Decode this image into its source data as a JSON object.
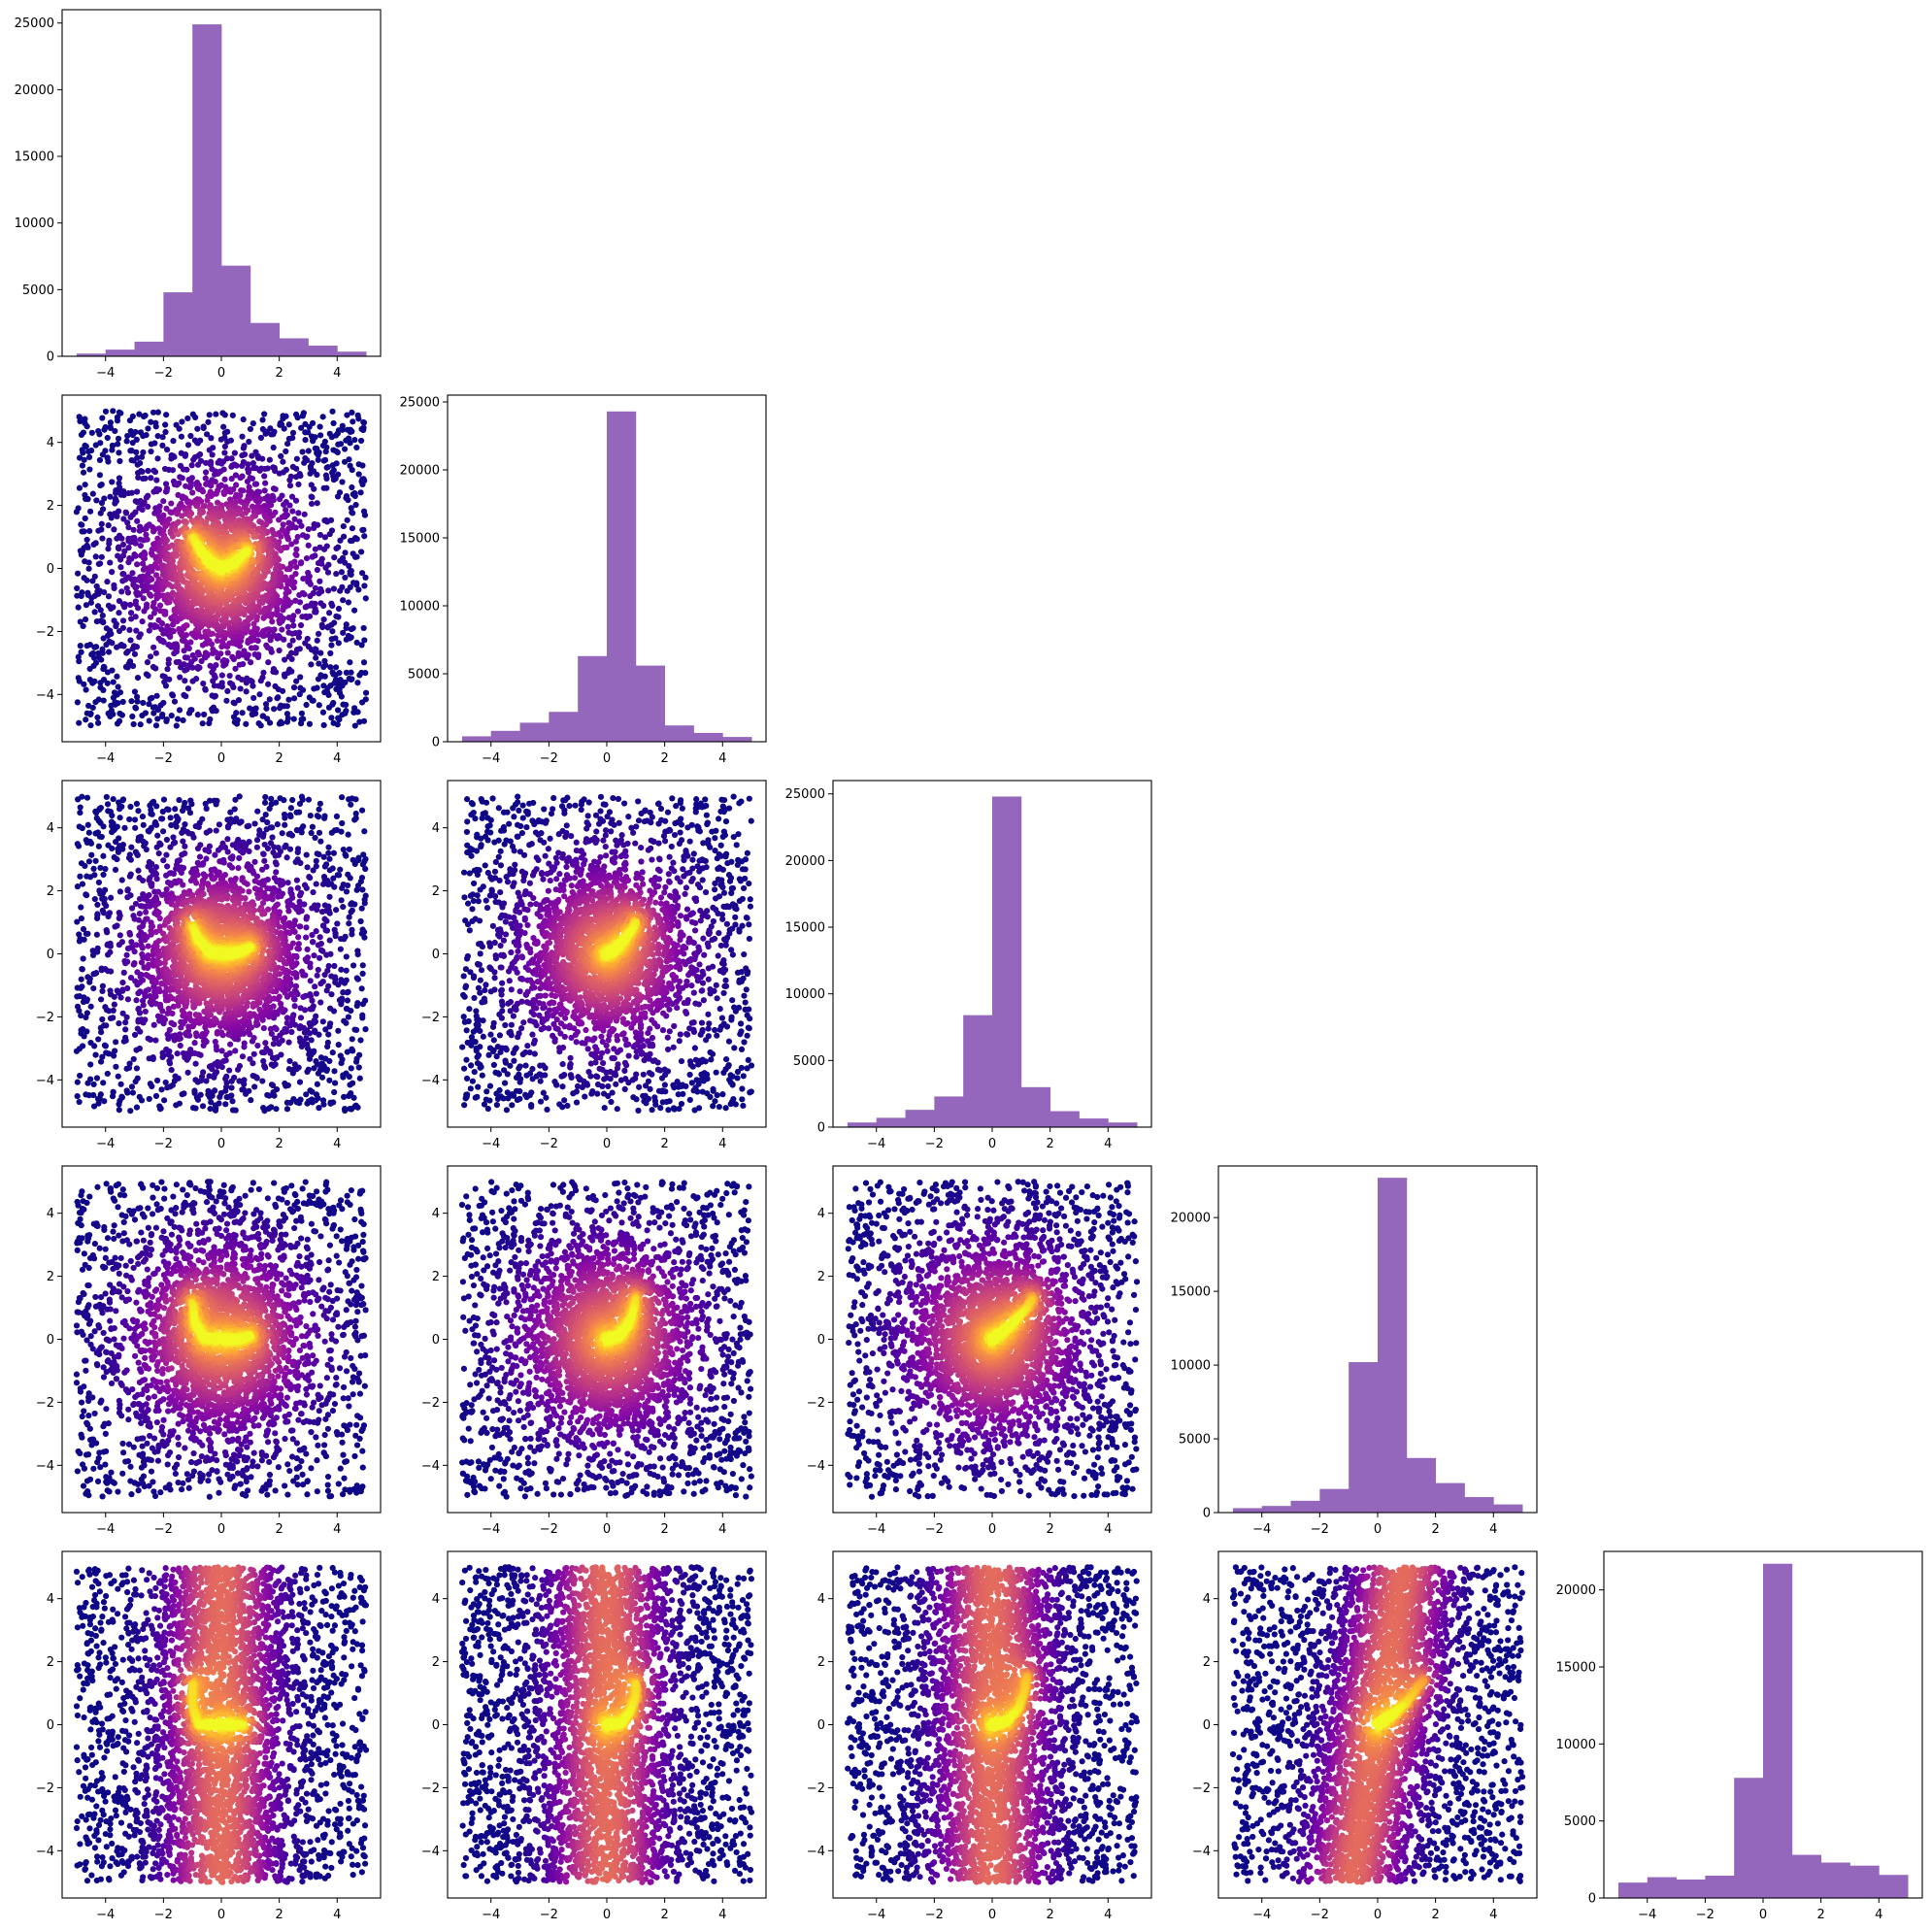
{
  "figure": {
    "layout": "corner-plot",
    "grid_size": 5,
    "hist_color": "#9467bd",
    "scatter_colormap": "plasma",
    "scatter_colors": {
      "low": "#0d0887",
      "mid": "#9c179e",
      "high": "#f0f921"
    }
  },
  "chart_data": [
    {
      "type": "bar",
      "row": 0,
      "col": 0,
      "xlim": [
        -5.5,
        5.5
      ],
      "ylim": [
        0,
        26000
      ],
      "x_ticks": [
        -4,
        -2,
        0,
        2,
        4
      ],
      "y_ticks": [
        0,
        5000,
        10000,
        15000,
        20000,
        25000
      ],
      "bin_edges": [
        -5,
        -4,
        -3,
        -2,
        -1,
        0,
        1,
        2,
        3,
        4,
        5
      ],
      "values": [
        200,
        500,
        1100,
        4800,
        24900,
        6800,
        2500,
        1350,
        800,
        350
      ],
      "x_tick_labels": [
        "−4",
        "−2",
        "0",
        "2",
        "4"
      ],
      "y_tick_labels": [
        "0",
        "5000",
        "10000",
        "15000",
        "20000",
        "25000"
      ]
    },
    {
      "type": "scatter",
      "row": 1,
      "col": 0,
      "shape": "v",
      "xlim": [
        -5.5,
        5.5
      ],
      "ylim": [
        -5.5,
        5.5
      ],
      "x_ticks": [
        -4,
        -2,
        0,
        2,
        4
      ],
      "y_ticks": [
        -4,
        -2,
        0,
        2,
        4
      ],
      "x_tick_labels": [
        "−4",
        "−2",
        "0",
        "2",
        "4"
      ],
      "y_tick_labels": [
        "−4",
        "−2",
        "0",
        "2",
        "4"
      ],
      "spread": {
        "x": 1.7,
        "y": 1.7
      },
      "n_points": 3800,
      "ridge": [
        [
          -1.0,
          1.0
        ],
        [
          -0.7,
          0.55
        ],
        [
          -0.4,
          0.2
        ],
        [
          0,
          0
        ],
        [
          0.4,
          0.15
        ],
        [
          0.9,
          0.55
        ]
      ]
    },
    {
      "type": "bar",
      "row": 1,
      "col": 1,
      "xlim": [
        -5.5,
        5.5
      ],
      "ylim": [
        0,
        25500
      ],
      "x_ticks": [
        -4,
        -2,
        0,
        2,
        4
      ],
      "y_ticks": [
        0,
        5000,
        10000,
        15000,
        20000,
        25000
      ],
      "bin_edges": [
        -5,
        -4,
        -3,
        -2,
        -1,
        0,
        1,
        2,
        3,
        4,
        5
      ],
      "values": [
        400,
        800,
        1400,
        2200,
        6300,
        24300,
        5600,
        1200,
        650,
        350
      ],
      "x_tick_labels": [
        "−4",
        "−2",
        "0",
        "2",
        "4"
      ],
      "y_tick_labels": [
        "0",
        "5000",
        "10000",
        "15000",
        "20000",
        "25000"
      ]
    },
    {
      "type": "scatter",
      "row": 2,
      "col": 0,
      "shape": "u",
      "xlim": [
        -5.5,
        5.5
      ],
      "ylim": [
        -5.5,
        5.5
      ],
      "x_ticks": [
        -4,
        -2,
        0,
        2,
        4
      ],
      "y_ticks": [
        -4,
        -2,
        0,
        2,
        4
      ],
      "x_tick_labels": [
        "−4",
        "−2",
        "0",
        "2",
        "4"
      ],
      "y_tick_labels": [
        "−4",
        "−2",
        "0",
        "2",
        "4"
      ],
      "spread": {
        "x": 1.7,
        "y": 1.7
      },
      "n_points": 3800,
      "ridge": [
        [
          -1.0,
          0.9
        ],
        [
          -0.8,
          0.45
        ],
        [
          -0.4,
          0.05
        ],
        [
          0.2,
          0
        ],
        [
          0.6,
          0.05
        ],
        [
          1.0,
          0.2
        ]
      ]
    },
    {
      "type": "scatter",
      "row": 2,
      "col": 1,
      "shape": "diag",
      "xlim": [
        -5.5,
        5.5
      ],
      "ylim": [
        -5.5,
        5.5
      ],
      "x_ticks": [
        -4,
        -2,
        0,
        2,
        4
      ],
      "y_ticks": [
        -4,
        -2,
        0,
        2,
        4
      ],
      "x_tick_labels": [
        "−4",
        "−2",
        "0",
        "2",
        "4"
      ],
      "y_tick_labels": [
        "−4",
        "−2",
        "0",
        "2",
        "4"
      ],
      "spread": {
        "x": 1.7,
        "y": 1.7
      },
      "n_points": 3800,
      "ridge": [
        [
          0,
          0
        ],
        [
          0.3,
          0.15
        ],
        [
          0.6,
          0.45
        ],
        [
          0.9,
          0.8
        ],
        [
          1.0,
          1.0
        ]
      ]
    },
    {
      "type": "bar",
      "row": 2,
      "col": 2,
      "xlim": [
        -5.5,
        5.5
      ],
      "ylim": [
        0,
        26000
      ],
      "x_ticks": [
        -4,
        -2,
        0,
        2,
        4
      ],
      "y_ticks": [
        0,
        5000,
        10000,
        15000,
        20000,
        25000
      ],
      "bin_edges": [
        -5,
        -4,
        -3,
        -2,
        -1,
        0,
        1,
        2,
        3,
        4,
        5
      ],
      "values": [
        350,
        700,
        1300,
        2300,
        8400,
        24800,
        3000,
        1200,
        650,
        350
      ],
      "x_tick_labels": [
        "−4",
        "−2",
        "0",
        "2",
        "4"
      ],
      "y_tick_labels": [
        "0",
        "5000",
        "10000",
        "15000",
        "20000",
        "25000"
      ]
    },
    {
      "type": "scatter",
      "row": 3,
      "col": 0,
      "shape": "u",
      "xlim": [
        -5.5,
        5.5
      ],
      "ylim": [
        -5.5,
        5.5
      ],
      "x_ticks": [
        -4,
        -2,
        0,
        2,
        4
      ],
      "y_ticks": [
        -4,
        -2,
        0,
        2,
        4
      ],
      "x_tick_labels": [
        "−4",
        "−2",
        "0",
        "2",
        "4"
      ],
      "y_tick_labels": [
        "−4",
        "−2",
        "0",
        "2",
        "4"
      ],
      "spread": {
        "x": 1.7,
        "y": 1.9
      },
      "n_points": 3800,
      "ridge": [
        [
          -1.0,
          1.2
        ],
        [
          -0.9,
          0.5
        ],
        [
          -0.6,
          0.05
        ],
        [
          0,
          0
        ],
        [
          0.6,
          0
        ],
        [
          1.0,
          0.1
        ]
      ]
    },
    {
      "type": "scatter",
      "row": 3,
      "col": 1,
      "shape": "diag",
      "xlim": [
        -5.5,
        5.5
      ],
      "ylim": [
        -5.5,
        5.5
      ],
      "x_ticks": [
        -4,
        -2,
        0,
        2,
        4
      ],
      "y_ticks": [
        -4,
        -2,
        0,
        2,
        4
      ],
      "x_tick_labels": [
        "−4",
        "−2",
        "0",
        "2",
        "4"
      ],
      "y_tick_labels": [
        "−4",
        "−2",
        "0",
        "2",
        "4"
      ],
      "spread": {
        "x": 1.7,
        "y": 1.9
      },
      "n_points": 3800,
      "ridge": [
        [
          0,
          0
        ],
        [
          0.4,
          0.1
        ],
        [
          0.7,
          0.4
        ],
        [
          0.9,
          0.8
        ],
        [
          1.0,
          1.3
        ]
      ]
    },
    {
      "type": "scatter",
      "row": 3,
      "col": 2,
      "shape": "diag",
      "xlim": [
        -5.5,
        5.5
      ],
      "ylim": [
        -5.5,
        5.5
      ],
      "x_ticks": [
        -4,
        -2,
        0,
        2,
        4
      ],
      "y_ticks": [
        -4,
        -2,
        0,
        2,
        4
      ],
      "x_tick_labels": [
        "−4",
        "−2",
        "0",
        "2",
        "4"
      ],
      "y_tick_labels": [
        "−4",
        "−2",
        "0",
        "2",
        "4"
      ],
      "spread": {
        "x": 1.7,
        "y": 1.9
      },
      "n_points": 3800,
      "ridge": [
        [
          0,
          0
        ],
        [
          0.4,
          0.25
        ],
        [
          0.8,
          0.6
        ],
        [
          1.2,
          1.0
        ],
        [
          1.4,
          1.3
        ]
      ]
    },
    {
      "type": "bar",
      "row": 3,
      "col": 3,
      "xlim": [
        -5.5,
        5.5
      ],
      "ylim": [
        0,
        23500
      ],
      "x_ticks": [
        -4,
        -2,
        0,
        2,
        4
      ],
      "y_ticks": [
        0,
        5000,
        10000,
        15000,
        20000
      ],
      "bin_edges": [
        -5,
        -4,
        -3,
        -2,
        -1,
        0,
        1,
        2,
        3,
        4,
        5
      ],
      "values": [
        300,
        450,
        800,
        1600,
        10200,
        22700,
        3700,
        2000,
        1050,
        550
      ],
      "x_tick_labels": [
        "−4",
        "−2",
        "0",
        "2",
        "4"
      ],
      "y_tick_labels": [
        "0",
        "5000",
        "10000",
        "15000",
        "20000"
      ]
    },
    {
      "type": "scatter",
      "row": 4,
      "col": 0,
      "shape": "vertical",
      "xlim": [
        -5.5,
        5.5
      ],
      "ylim": [
        -5.5,
        5.5
      ],
      "x_ticks": [
        -4,
        -2,
        0,
        2,
        4
      ],
      "y_ticks": [
        -4,
        -2,
        0,
        2,
        4
      ],
      "x_tick_labels": [
        "−4",
        "−2",
        "0",
        "2",
        "4"
      ],
      "y_tick_labels": [
        "−4",
        "−2",
        "0",
        "2",
        "4"
      ],
      "spread": {
        "x": 1.7,
        "y": 4.0
      },
      "n_points": 4200,
      "ridge": [
        [
          -1.0,
          1.3
        ],
        [
          -1.0,
          0.6
        ],
        [
          -0.8,
          0
        ],
        [
          0,
          0
        ],
        [
          0.8,
          0
        ]
      ]
    },
    {
      "type": "scatter",
      "row": 4,
      "col": 1,
      "shape": "vertical",
      "xlim": [
        -5.5,
        5.5
      ],
      "ylim": [
        -5.5,
        5.5
      ],
      "x_ticks": [
        -4,
        -2,
        0,
        2,
        4
      ],
      "y_ticks": [
        -4,
        -2,
        0,
        2,
        4
      ],
      "x_tick_labels": [
        "−4",
        "−2",
        "0",
        "2",
        "4"
      ],
      "y_tick_labels": [
        "−4",
        "−2",
        "0",
        "2",
        "4"
      ],
      "spread": {
        "x": 1.7,
        "y": 4.0
      },
      "n_points": 4200,
      "ridge": [
        [
          0,
          0
        ],
        [
          0.5,
          0.05
        ],
        [
          0.8,
          0.4
        ],
        [
          1.0,
          0.9
        ],
        [
          1.0,
          1.3
        ]
      ]
    },
    {
      "type": "scatter",
      "row": 4,
      "col": 2,
      "shape": "vertical",
      "xlim": [
        -5.5,
        5.5
      ],
      "ylim": [
        -5.5,
        5.5
      ],
      "x_ticks": [
        -4,
        -2,
        0,
        2,
        4
      ],
      "y_ticks": [
        -4,
        -2,
        0,
        2,
        4
      ],
      "x_tick_labels": [
        "−4",
        "−2",
        "0",
        "2",
        "4"
      ],
      "y_tick_labels": [
        "−4",
        "−2",
        "0",
        "2",
        "4"
      ],
      "spread": {
        "x": 1.7,
        "y": 4.0
      },
      "n_points": 4200,
      "ridge": [
        [
          0,
          0
        ],
        [
          0.5,
          0.1
        ],
        [
          0.9,
          0.5
        ],
        [
          1.1,
          1.0
        ],
        [
          1.2,
          1.5
        ]
      ]
    },
    {
      "type": "scatter",
      "row": 4,
      "col": 3,
      "shape": "wedge",
      "xlim": [
        -5.5,
        5.5
      ],
      "ylim": [
        -5.5,
        5.5
      ],
      "x_ticks": [
        -4,
        -2,
        0,
        2,
        4
      ],
      "y_ticks": [
        -4,
        -2,
        0,
        2,
        4
      ],
      "x_tick_labels": [
        "−4",
        "−2",
        "0",
        "2",
        "4"
      ],
      "y_tick_labels": [
        "−4",
        "−2",
        "0",
        "2",
        "4"
      ],
      "spread": {
        "x": 1.5,
        "y": 4.0
      },
      "n_points": 4200,
      "ridge": [
        [
          0,
          0
        ],
        [
          0.5,
          0.3
        ],
        [
          1.0,
          0.7
        ],
        [
          1.4,
          1.2
        ],
        [
          1.6,
          1.4
        ]
      ]
    },
    {
      "type": "bar",
      "row": 4,
      "col": 4,
      "xlim": [
        -5.5,
        5.5
      ],
      "ylim": [
        0,
        22500
      ],
      "x_ticks": [
        -4,
        -2,
        0,
        2,
        4
      ],
      "y_ticks": [
        0,
        5000,
        10000,
        15000,
        20000
      ],
      "bin_edges": [
        -5,
        -4,
        -3,
        -2,
        -1,
        0,
        1,
        2,
        3,
        4,
        5
      ],
      "values": [
        1000,
        1350,
        1200,
        1450,
        7800,
        21700,
        2800,
        2300,
        2100,
        1500
      ],
      "x_tick_labels": [
        "−4",
        "−2",
        "0",
        "2",
        "4"
      ],
      "y_tick_labels": [
        "0",
        "5000",
        "10000",
        "15000",
        "20000"
      ]
    }
  ]
}
